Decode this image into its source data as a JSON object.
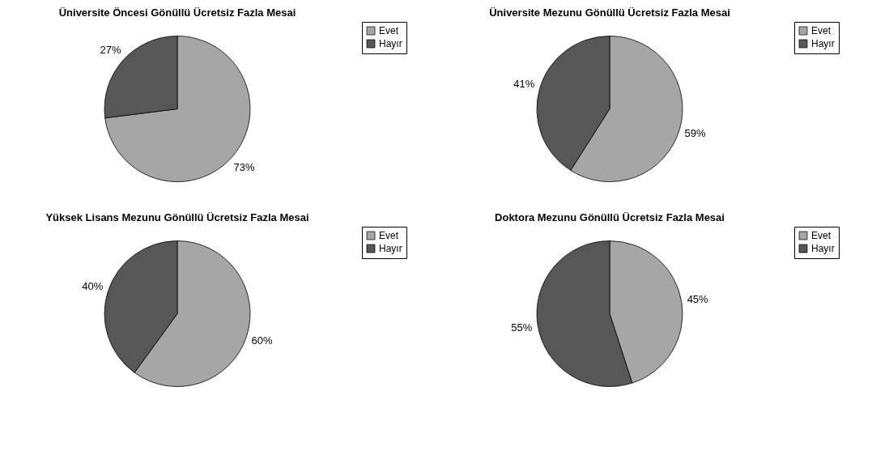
{
  "chart_data": [
    {
      "type": "pie",
      "title": "Üniversite Öncesi Gönüllü Ücretsiz Fazla Mesai",
      "categories": [
        "Evet",
        "Hayır"
      ],
      "values": [
        73,
        27
      ],
      "colors": [
        "#a6a6a6",
        "#575757"
      ],
      "value_labels": [
        "73%",
        "27%"
      ],
      "legend": "right"
    },
    {
      "type": "pie",
      "title": "Üniversite Mezunu Gönüllü Ücretsiz Fazla Mesai",
      "categories": [
        "Evet",
        "Hayır"
      ],
      "values": [
        59,
        41
      ],
      "colors": [
        "#a6a6a6",
        "#575757"
      ],
      "value_labels": [
        "59%",
        "41%"
      ],
      "legend": "right"
    },
    {
      "type": "pie",
      "title": "Yüksek Lisans Mezunu Gönüllü Ücretsiz Fazla Mesai",
      "categories": [
        "Evet",
        "Hayır"
      ],
      "values": [
        60,
        40
      ],
      "colors": [
        "#a6a6a6",
        "#575757"
      ],
      "value_labels": [
        "60%",
        "40%"
      ],
      "legend": "right"
    },
    {
      "type": "pie",
      "title": "Doktora Mezunu Gönüllü Ücretsiz Fazla Mesai",
      "categories": [
        "Evet",
        "Hayır"
      ],
      "values": [
        45,
        55
      ],
      "colors": [
        "#a6a6a6",
        "#575757"
      ],
      "value_labels": [
        "45%",
        "55%"
      ],
      "legend": "right"
    }
  ]
}
